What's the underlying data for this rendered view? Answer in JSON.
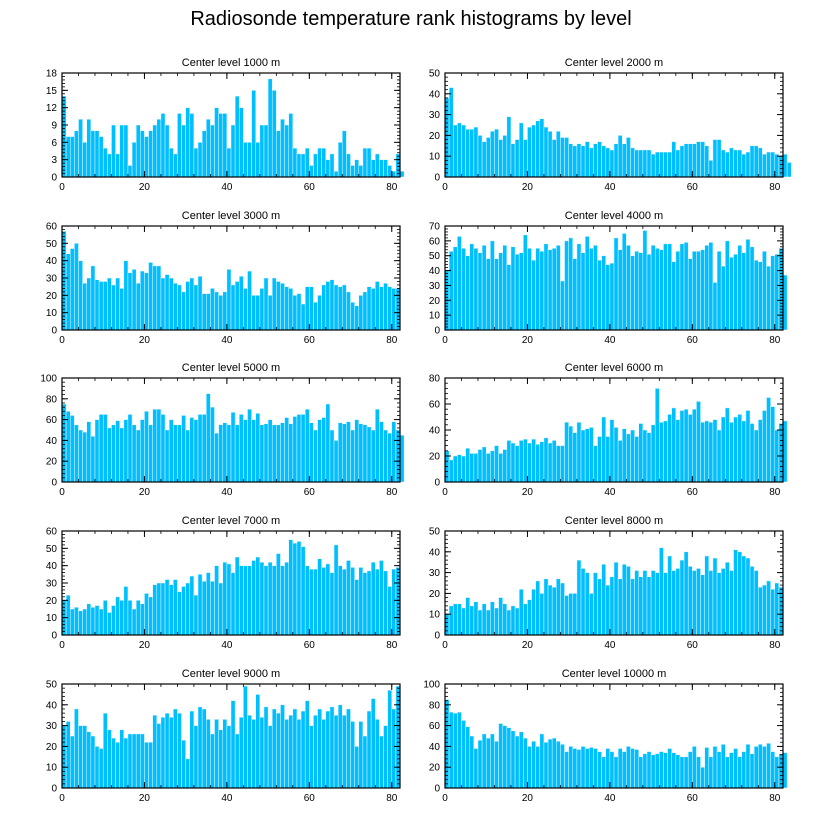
{
  "title": "Radiosonde temperature rank histograms by level",
  "colors": {
    "bar": "#00bfff",
    "bar_edge": "#e6f8ff",
    "axis": "#000000"
  },
  "chart_data": [
    {
      "type": "bar",
      "title": "Center level 1000 m",
      "xlim": [
        0,
        82
      ],
      "ylim": [
        0,
        18
      ],
      "xticks": [
        0,
        20,
        40,
        60,
        80
      ],
      "yticks": [
        0,
        3,
        6,
        9,
        12,
        15,
        18
      ],
      "values": [
        14,
        7,
        7,
        8,
        10,
        6,
        10,
        8,
        8,
        7,
        5,
        4,
        9,
        4,
        9,
        9,
        2,
        6,
        9,
        8,
        7,
        8,
        9,
        10,
        11,
        9,
        5,
        4,
        11,
        9,
        12,
        11,
        5,
        6,
        8,
        10,
        9,
        12,
        11,
        11,
        5,
        9,
        14,
        12,
        6,
        6,
        15,
        6,
        9,
        9,
        17,
        15,
        8,
        10,
        9,
        11,
        5,
        4,
        4,
        5,
        2,
        4,
        5,
        5,
        3,
        4,
        1,
        6,
        8,
        4,
        2,
        3,
        2,
        5,
        5,
        3,
        4,
        3,
        3,
        2,
        1,
        4,
        1
      ]
    },
    {
      "type": "bar",
      "title": "Center level 2000 m",
      "xlim": [
        0,
        82
      ],
      "ylim": [
        0,
        50
      ],
      "xticks": [
        0,
        20,
        40,
        60,
        80
      ],
      "yticks": [
        0,
        10,
        20,
        30,
        40,
        50
      ],
      "values": [
        38,
        43,
        25,
        26,
        25,
        23,
        23,
        24,
        20,
        17,
        19,
        22,
        23,
        18,
        20,
        29,
        16,
        18,
        26,
        18,
        24,
        25,
        27,
        28,
        24,
        22,
        18,
        22,
        19,
        19,
        16,
        15,
        16,
        15,
        17,
        14,
        16,
        17,
        15,
        14,
        13,
        16,
        20,
        16,
        19,
        14,
        13,
        13,
        13,
        13,
        11,
        12,
        12,
        12,
        12,
        17,
        13,
        15,
        16,
        16,
        16,
        17,
        17,
        15,
        8,
        18,
        18,
        13,
        12,
        14,
        13,
        13,
        11,
        12,
        15,
        15,
        14,
        11,
        12,
        12,
        11,
        10,
        11,
        7
      ]
    },
    {
      "type": "bar",
      "title": "Center level 3000 m",
      "xlim": [
        0,
        82
      ],
      "ylim": [
        0,
        60
      ],
      "xticks": [
        0,
        20,
        40,
        60,
        80
      ],
      "yticks": [
        0,
        10,
        20,
        30,
        40,
        50,
        60
      ],
      "values": [
        57,
        44,
        47,
        50,
        40,
        27,
        30,
        37,
        29,
        28,
        28,
        30,
        26,
        30,
        24,
        40,
        33,
        35,
        27,
        34,
        33,
        39,
        37,
        37,
        30,
        32,
        30,
        27,
        26,
        22,
        28,
        30,
        26,
        31,
        21,
        21,
        24,
        22,
        20,
        22,
        35,
        26,
        28,
        31,
        24,
        34,
        20,
        20,
        24,
        30,
        20,
        30,
        28,
        27,
        25,
        24,
        20,
        21,
        15,
        25,
        25,
        16,
        20,
        26,
        28,
        29,
        26,
        25,
        26,
        22,
        16,
        14,
        20,
        22,
        25,
        24,
        28,
        25,
        27,
        25,
        24,
        24
      ]
    },
    {
      "type": "bar",
      "title": "Center level 4000 m",
      "xlim": [
        0,
        82
      ],
      "ylim": [
        0,
        70
      ],
      "xticks": [
        0,
        20,
        40,
        60,
        80
      ],
      "yticks": [
        0,
        10,
        20,
        30,
        40,
        50,
        60,
        70
      ],
      "values": [
        40,
        53,
        56,
        63,
        55,
        50,
        58,
        55,
        52,
        57,
        48,
        60,
        48,
        52,
        57,
        44,
        56,
        51,
        52,
        64,
        55,
        47,
        55,
        53,
        58,
        54,
        55,
        57,
        33,
        60,
        62,
        48,
        58,
        52,
        63,
        55,
        57,
        47,
        50,
        44,
        45,
        62,
        54,
        65,
        57,
        50,
        53,
        52,
        67,
        51,
        57,
        55,
        54,
        58,
        58,
        46,
        53,
        58,
        59,
        48,
        53,
        53,
        54,
        57,
        59,
        32,
        53,
        43,
        60,
        49,
        51,
        57,
        52,
        61,
        56,
        47,
        46,
        53,
        43,
        50,
        51,
        55,
        37
      ]
    },
    {
      "type": "bar",
      "title": "Center level 5000 m",
      "xlim": [
        0,
        82
      ],
      "ylim": [
        0,
        100
      ],
      "xticks": [
        0,
        20,
        40,
        60,
        80
      ],
      "yticks": [
        0,
        20,
        40,
        60,
        80,
        100
      ],
      "values": [
        75,
        68,
        64,
        55,
        50,
        48,
        58,
        44,
        60,
        65,
        65,
        52,
        55,
        59,
        52,
        60,
        65,
        55,
        50,
        60,
        68,
        55,
        70,
        70,
        65,
        50,
        60,
        55,
        55,
        64,
        50,
        62,
        60,
        65,
        65,
        85,
        72,
        47,
        55,
        57,
        55,
        67,
        55,
        65,
        60,
        70,
        60,
        66,
        55,
        56,
        60,
        55,
        55,
        57,
        62,
        56,
        63,
        65,
        65,
        70,
        57,
        50,
        60,
        62,
        75,
        50,
        40,
        57,
        56,
        58,
        50,
        60,
        56,
        55,
        53,
        50,
        70,
        58,
        50,
        47,
        58,
        50,
        45
      ]
    },
    {
      "type": "bar",
      "title": "Center level 6000 m",
      "xlim": [
        0,
        82
      ],
      "ylim": [
        0,
        80
      ],
      "xticks": [
        0,
        20,
        40,
        60,
        80
      ],
      "yticks": [
        0,
        20,
        40,
        60,
        80
      ],
      "values": [
        24,
        17,
        20,
        21,
        20,
        26,
        22,
        22,
        25,
        27,
        22,
        24,
        28,
        22,
        25,
        32,
        30,
        28,
        32,
        33,
        30,
        33,
        29,
        31,
        34,
        30,
        32,
        28,
        28,
        46,
        43,
        38,
        46,
        40,
        41,
        42,
        28,
        35,
        50,
        35,
        48,
        42,
        32,
        41,
        37,
        40,
        35,
        45,
        40,
        38,
        44,
        72,
        46,
        47,
        52,
        57,
        48,
        55,
        56,
        52,
        56,
        62,
        46,
        47,
        46,
        48,
        40,
        50,
        57,
        46,
        50,
        52,
        47,
        55,
        45,
        40,
        48,
        55,
        65,
        58,
        40,
        45,
        47
      ]
    },
    {
      "type": "bar",
      "title": "Center level 7000 m",
      "xlim": [
        0,
        82
      ],
      "ylim": [
        0,
        60
      ],
      "xticks": [
        0,
        20,
        40,
        60,
        80
      ],
      "yticks": [
        0,
        10,
        20,
        30,
        40,
        50,
        60
      ],
      "values": [
        20,
        23,
        15,
        16,
        14,
        15,
        18,
        16,
        17,
        15,
        20,
        13,
        17,
        22,
        20,
        28,
        20,
        15,
        20,
        18,
        24,
        22,
        29,
        30,
        30,
        32,
        29,
        32,
        25,
        28,
        30,
        34,
        23,
        35,
        31,
        36,
        31,
        40,
        30,
        42,
        41,
        36,
        45,
        40,
        40,
        40,
        43,
        45,
        42,
        40,
        42,
        40,
        47,
        40,
        42,
        55,
        53,
        54,
        51,
        40,
        38,
        38,
        44,
        39,
        41,
        36,
        52,
        40,
        38,
        43,
        39,
        32,
        39,
        36,
        37,
        42,
        38,
        43,
        37,
        28,
        38,
        39
      ]
    },
    {
      "type": "bar",
      "title": "Center level 8000 m",
      "xlim": [
        0,
        82
      ],
      "ylim": [
        0,
        50
      ],
      "xticks": [
        0,
        20,
        40,
        60,
        80
      ],
      "yticks": [
        0,
        10,
        20,
        30,
        40,
        50
      ],
      "values": [
        10,
        14,
        15,
        15,
        13,
        18,
        14,
        16,
        12,
        15,
        12,
        16,
        13,
        18,
        15,
        12,
        14,
        13,
        22,
        15,
        17,
        22,
        26,
        20,
        27,
        24,
        23,
        27,
        25,
        19,
        20,
        20,
        36,
        32,
        30,
        20,
        30,
        27,
        34,
        24,
        28,
        35,
        27,
        34,
        33,
        27,
        31,
        28,
        31,
        28,
        31,
        30,
        42,
        30,
        38,
        31,
        32,
        36,
        40,
        33,
        31,
        32,
        29,
        38,
        31,
        37,
        30,
        32,
        35,
        31,
        41,
        40,
        38,
        37,
        33,
        31,
        23,
        24,
        26,
        22,
        25,
        23
      ]
    },
    {
      "type": "bar",
      "title": "Center level 9000 m",
      "xlim": [
        0,
        82
      ],
      "ylim": [
        0,
        50
      ],
      "xticks": [
        0,
        20,
        40,
        60,
        80
      ],
      "yticks": [
        0,
        10,
        20,
        30,
        40,
        50
      ],
      "values": [
        30,
        32,
        25,
        38,
        30,
        30,
        27,
        25,
        20,
        19,
        36,
        28,
        24,
        22,
        28,
        24,
        26,
        26,
        26,
        26,
        22,
        22,
        35,
        31,
        34,
        36,
        34,
        38,
        36,
        23,
        14,
        37,
        30,
        39,
        38,
        33,
        26,
        33,
        28,
        33,
        30,
        42,
        26,
        34,
        49,
        35,
        33,
        45,
        34,
        39,
        30,
        38,
        36,
        40,
        33,
        35,
        38,
        33,
        37,
        42,
        30,
        35,
        38,
        33,
        37,
        39,
        35,
        40,
        35,
        38,
        32,
        20,
        32,
        25,
        37,
        43,
        33,
        25,
        30,
        47,
        38,
        49
      ]
    },
    {
      "type": "bar",
      "title": "Center level 10000 m",
      "xlim": [
        0,
        82
      ],
      "ylim": [
        0,
        100
      ],
      "xticks": [
        0,
        20,
        40,
        60,
        80
      ],
      "yticks": [
        0,
        20,
        40,
        60,
        80,
        100
      ],
      "values": [
        85,
        73,
        72,
        73,
        65,
        59,
        50,
        38,
        46,
        52,
        48,
        52,
        45,
        62,
        60,
        58,
        55,
        50,
        54,
        48,
        40,
        45,
        40,
        52,
        44,
        47,
        48,
        45,
        42,
        35,
        40,
        38,
        37,
        40,
        38,
        39,
        38,
        35,
        30,
        38,
        35,
        30,
        38,
        35,
        40,
        38,
        37,
        30,
        33,
        35,
        32,
        33,
        35,
        34,
        38,
        34,
        32,
        30,
        30,
        35,
        40,
        30,
        20,
        39,
        30,
        40,
        35,
        42,
        30,
        34,
        38,
        30,
        35,
        42,
        33,
        40,
        42,
        40,
        43,
        35,
        30,
        33,
        34
      ]
    }
  ]
}
